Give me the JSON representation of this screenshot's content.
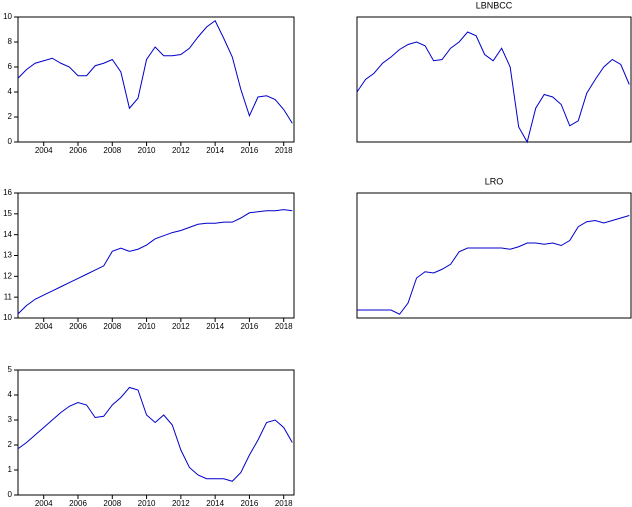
{
  "chart_data": [
    {
      "type": "line",
      "color": "#0000cc",
      "x": [
        2002.5,
        2003,
        2003.5,
        2004,
        2004.5,
        2005,
        2005.5,
        2006,
        2006.5,
        2007,
        2007.5,
        2008,
        2008.5,
        2009,
        2009.5,
        2010,
        2010.5,
        2011,
        2011.5,
        2012,
        2012.5,
        2013,
        2013.5,
        2014,
        2014.5,
        2015,
        2015.5,
        2016,
        2016.5,
        2017,
        2017.5,
        2018,
        2018.5
      ],
      "values": [
        5.1,
        5.8,
        6.3,
        6.5,
        6.7,
        6.3,
        6.0,
        5.3,
        5.3,
        6.1,
        6.3,
        6.6,
        5.6,
        2.7,
        3.5,
        6.6,
        7.6,
        6.9,
        6.9,
        7.0,
        7.5,
        8.4,
        9.2,
        9.7,
        8.3,
        6.8,
        4.2,
        2.1,
        3.6,
        3.7,
        3.4,
        2.6,
        1.5
      ],
      "xlim": [
        2002.5,
        2018.6
      ],
      "ylim": [
        0,
        10
      ],
      "yticks": [
        0,
        2,
        4,
        6,
        8,
        10
      ],
      "xticks": [
        2004,
        2006,
        2008,
        2010,
        2012,
        2014,
        2016,
        2018
      ]
    },
    {
      "type": "line",
      "title": "LBNBCC",
      "color": "#0000cc",
      "x": [
        2002.5,
        2003,
        2003.5,
        2004,
        2004.5,
        2005,
        2005.5,
        2006,
        2006.5,
        2007,
        2007.5,
        2008,
        2008.5,
        2009,
        2009.5,
        2010,
        2010.5,
        2011,
        2011.5,
        2012,
        2012.5,
        2013,
        2013.5,
        2014,
        2014.5,
        2015,
        2015.5,
        2016,
        2016.5,
        2017,
        2017.5,
        2018,
        2018.5
      ],
      "values": [
        4.0,
        5.0,
        5.5,
        6.3,
        6.8,
        7.4,
        7.8,
        8.0,
        7.7,
        6.5,
        6.6,
        7.5,
        8.0,
        8.8,
        8.5,
        7.0,
        6.5,
        7.5,
        6.0,
        1.2,
        0.0,
        2.7,
        3.8,
        3.6,
        3.0,
        1.3,
        1.7,
        3.9,
        5.0,
        6.0,
        6.6,
        6.2,
        4.6
      ],
      "xlim": [
        2002.5,
        2018.6
      ],
      "ylim": [
        0,
        10
      ]
    },
    {
      "type": "line",
      "color": "#0000cc",
      "x": [
        2002.5,
        2003,
        2003.5,
        2004,
        2004.5,
        2005,
        2005.5,
        2006,
        2006.5,
        2007,
        2007.5,
        2008,
        2008.5,
        2009,
        2009.5,
        2010,
        2010.5,
        2011,
        2011.5,
        2012,
        2012.5,
        2013,
        2013.5,
        2014,
        2014.5,
        2015,
        2015.5,
        2016,
        2016.5,
        2017,
        2017.5,
        2018,
        2018.5
      ],
      "values": [
        10.2,
        10.6,
        10.9,
        11.1,
        11.3,
        11.5,
        11.7,
        11.9,
        12.1,
        12.3,
        12.5,
        13.2,
        13.35,
        13.2,
        13.3,
        13.5,
        13.8,
        13.95,
        14.1,
        14.2,
        14.35,
        14.5,
        14.55,
        14.55,
        14.6,
        14.6,
        14.8,
        15.05,
        15.1,
        15.15,
        15.15,
        15.2,
        15.15
      ],
      "xlim": [
        2002.5,
        2018.6
      ],
      "ylim": [
        10,
        16
      ],
      "yticks": [
        10,
        11,
        12,
        13,
        14,
        15,
        16
      ],
      "xticks": [
        2004,
        2006,
        2008,
        2010,
        2012,
        2014,
        2016,
        2018
      ]
    },
    {
      "type": "line",
      "title": "LRO",
      "color": "#0000cc",
      "x": [
        2002.5,
        2003,
        2003.5,
        2004,
        2004.5,
        2005,
        2005.5,
        2006,
        2006.5,
        2007,
        2007.5,
        2008,
        2008.5,
        2009,
        2009.5,
        2010,
        2010.5,
        2011,
        2011.5,
        2012,
        2012.5,
        2013,
        2013.5,
        2014,
        2014.5,
        2015,
        2015.5,
        2016,
        2016.5,
        2017,
        2017.5,
        2018,
        2018.5
      ],
      "values": [
        0.64,
        0.64,
        0.64,
        0.64,
        0.64,
        0.3,
        1.2,
        3.2,
        3.7,
        3.6,
        3.9,
        4.3,
        5.3,
        5.6,
        5.6,
        5.6,
        5.6,
        5.6,
        5.5,
        5.7,
        6.0,
        6.0,
        5.9,
        6.0,
        5.8,
        6.2,
        7.3,
        7.7,
        7.8,
        7.6,
        7.8,
        8.0,
        8.2
      ],
      "xlim": [
        2002.5,
        2018.6
      ],
      "ylim": [
        0,
        10
      ]
    },
    {
      "type": "line",
      "color": "#0000cc",
      "x": [
        2002.5,
        2003,
        2003.5,
        2004,
        2004.5,
        2005,
        2005.5,
        2006,
        2006.5,
        2007,
        2007.5,
        2008,
        2008.5,
        2009,
        2009.5,
        2010,
        2010.5,
        2011,
        2011.5,
        2012,
        2012.5,
        2013,
        2013.5,
        2014,
        2014.5,
        2015,
        2015.5,
        2016,
        2016.5,
        2017,
        2017.5,
        2018,
        2018.5
      ],
      "values": [
        1.85,
        2.1,
        2.4,
        2.7,
        3.0,
        3.3,
        3.55,
        3.7,
        3.6,
        3.1,
        3.15,
        3.6,
        3.9,
        4.3,
        4.2,
        3.2,
        2.9,
        3.2,
        2.8,
        1.8,
        1.1,
        0.8,
        0.65,
        0.65,
        0.65,
        0.55,
        0.9,
        1.6,
        2.2,
        2.9,
        3.0,
        2.7,
        2.1
      ],
      "xlim": [
        2002.5,
        2018.6
      ],
      "ylim": [
        0,
        5
      ],
      "yticks": [
        0,
        1,
        2,
        3,
        4,
        5
      ],
      "xticks": [
        2004,
        2006,
        2008,
        2010,
        2012,
        2014,
        2016,
        2018
      ]
    }
  ]
}
